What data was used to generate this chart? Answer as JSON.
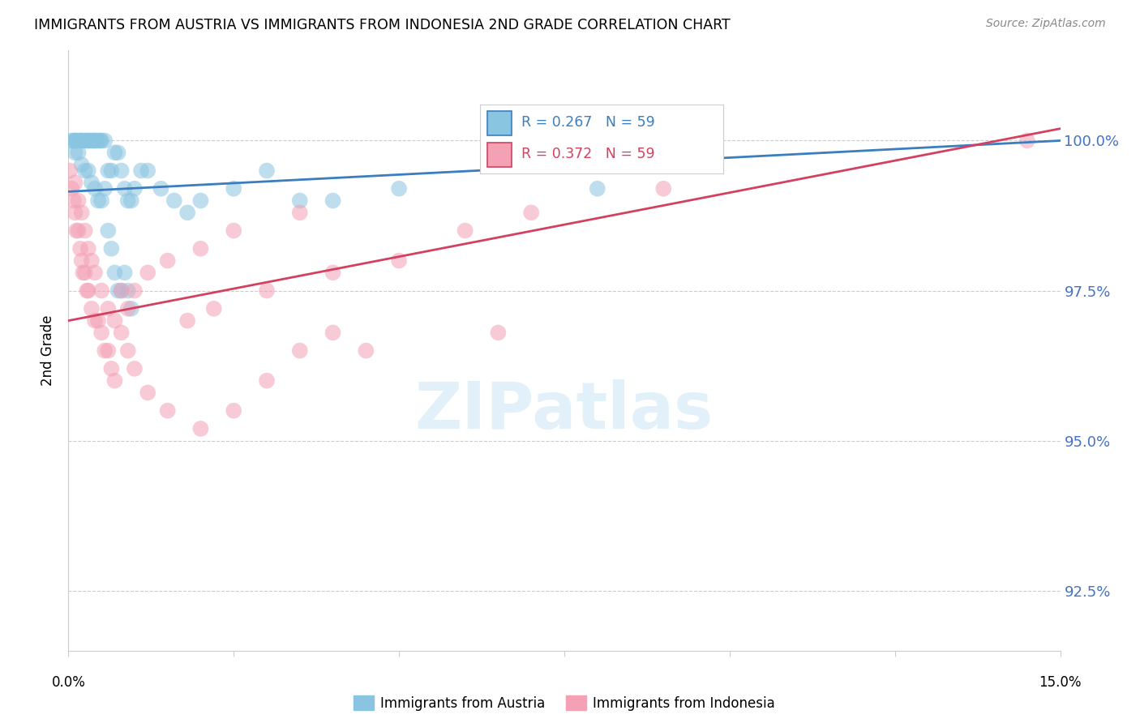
{
  "title": "IMMIGRANTS FROM AUSTRIA VS IMMIGRANTS FROM INDONESIA 2ND GRADE CORRELATION CHART",
  "source": "Source: ZipAtlas.com",
  "ylabel": "2nd Grade",
  "austria_color": "#89c4e1",
  "indonesia_color": "#f4a0b5",
  "austria_line_color": "#3a7ebf",
  "indonesia_line_color": "#d44060",
  "R_austria": 0.267,
  "N_austria": 59,
  "R_indonesia": 0.372,
  "N_indonesia": 59,
  "legend_label_austria": "Immigrants from Austria",
  "legend_label_indonesia": "Immigrants from Indonesia",
  "xlim": [
    0.0,
    15.0
  ],
  "ylim": [
    91.5,
    101.5
  ],
  "yticks": [
    92.5,
    95.0,
    97.5,
    100.0
  ],
  "ytick_labels": [
    "92.5%",
    "95.0%",
    "97.5%",
    "100.0%"
  ],
  "austria_x": [
    0.05,
    0.08,
    0.1,
    0.12,
    0.15,
    0.18,
    0.2,
    0.22,
    0.25,
    0.28,
    0.3,
    0.32,
    0.35,
    0.38,
    0.4,
    0.42,
    0.45,
    0.48,
    0.5,
    0.55,
    0.1,
    0.15,
    0.2,
    0.25,
    0.3,
    0.35,
    0.4,
    0.45,
    0.5,
    0.55,
    0.6,
    0.65,
    0.7,
    0.75,
    0.8,
    0.85,
    0.9,
    0.95,
    1.0,
    1.1,
    1.2,
    1.4,
    1.6,
    1.8,
    2.0,
    2.5,
    3.0,
    3.5,
    4.0,
    5.0,
    0.6,
    0.65,
    0.7,
    0.75,
    0.8,
    0.85,
    0.9,
    0.95,
    8.0
  ],
  "austria_y": [
    100.0,
    100.0,
    100.0,
    100.0,
    100.0,
    100.0,
    100.0,
    100.0,
    100.0,
    100.0,
    100.0,
    100.0,
    100.0,
    100.0,
    100.0,
    100.0,
    100.0,
    100.0,
    100.0,
    100.0,
    99.8,
    99.8,
    99.6,
    99.5,
    99.5,
    99.3,
    99.2,
    99.0,
    99.0,
    99.2,
    99.5,
    99.5,
    99.8,
    99.8,
    99.5,
    99.2,
    99.0,
    99.0,
    99.2,
    99.5,
    99.5,
    99.2,
    99.0,
    98.8,
    99.0,
    99.2,
    99.5,
    99.0,
    99.0,
    99.2,
    98.5,
    98.2,
    97.8,
    97.5,
    97.5,
    97.8,
    97.5,
    97.2,
    99.2
  ],
  "indonesia_x": [
    0.02,
    0.05,
    0.08,
    0.1,
    0.12,
    0.15,
    0.18,
    0.2,
    0.22,
    0.25,
    0.28,
    0.3,
    0.35,
    0.4,
    0.45,
    0.5,
    0.55,
    0.6,
    0.65,
    0.7,
    0.1,
    0.15,
    0.2,
    0.25,
    0.3,
    0.35,
    0.4,
    0.5,
    0.6,
    0.7,
    0.8,
    0.9,
    1.0,
    1.2,
    1.5,
    2.0,
    2.5,
    3.0,
    3.5,
    4.0,
    0.8,
    0.9,
    1.0,
    1.2,
    1.5,
    2.0,
    2.5,
    3.5,
    4.5,
    6.5,
    1.8,
    2.2,
    3.0,
    4.0,
    5.0,
    6.0,
    7.0,
    9.0,
    14.5
  ],
  "indonesia_y": [
    99.5,
    99.2,
    99.0,
    98.8,
    98.5,
    98.5,
    98.2,
    98.0,
    97.8,
    97.8,
    97.5,
    97.5,
    97.2,
    97.0,
    97.0,
    96.8,
    96.5,
    96.5,
    96.2,
    96.0,
    99.3,
    99.0,
    98.8,
    98.5,
    98.2,
    98.0,
    97.8,
    97.5,
    97.2,
    97.0,
    96.8,
    96.5,
    96.2,
    95.8,
    95.5,
    95.2,
    95.5,
    96.0,
    96.5,
    96.8,
    97.5,
    97.2,
    97.5,
    97.8,
    98.0,
    98.2,
    98.5,
    98.8,
    96.5,
    96.8,
    97.0,
    97.2,
    97.5,
    97.8,
    98.0,
    98.5,
    98.8,
    99.2,
    100.0
  ]
}
